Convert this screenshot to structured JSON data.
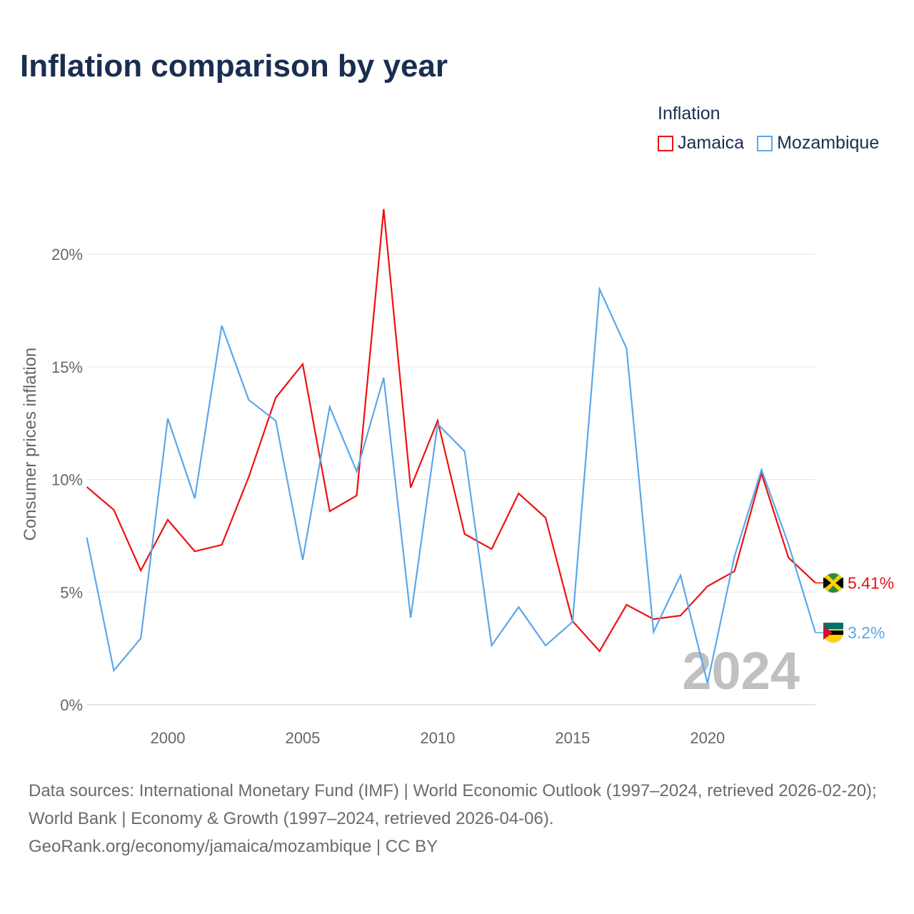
{
  "title": "Inflation comparison by year",
  "legend": {
    "title": "Inflation",
    "items": [
      {
        "label": "Jamaica",
        "color": "#ee1111"
      },
      {
        "label": "Mozambique",
        "color": "#5ba7ea"
      }
    ]
  },
  "source": {
    "line1": "Data sources: International Monetary Fund (IMF) | World Economic Outlook (1997–2024, retrieved 2026-02-20); World Bank | Economy & Growth (1997–2024, retrieved 2026-04-06).",
    "line2": "GeoRank.org/economy/jamaica/mozambique | CC BY"
  },
  "chart_data": {
    "type": "line",
    "title": "Inflation comparison by year",
    "xlabel": "",
    "ylabel": "Consumer prices inflation",
    "year_watermark": "2024",
    "xlim": [
      1997,
      2024
    ],
    "ylim": [
      0,
      22.5
    ],
    "x_ticks": [
      2000,
      2005,
      2010,
      2015,
      2020
    ],
    "y_ticks": [
      0,
      5,
      10,
      15,
      20
    ],
    "y_tick_labels": [
      "0%",
      "5%",
      "10%",
      "15%",
      "20%"
    ],
    "grid": true,
    "x": [
      1997,
      1998,
      1999,
      2000,
      2001,
      2002,
      2003,
      2004,
      2005,
      2006,
      2007,
      2008,
      2009,
      2010,
      2011,
      2012,
      2013,
      2014,
      2015,
      2016,
      2017,
      2018,
      2019,
      2020,
      2021,
      2022,
      2023,
      2024
    ],
    "series": [
      {
        "name": "Jamaica",
        "color": "#ee1111",
        "end_label": "5.41%",
        "values": [
          9.67,
          8.65,
          5.96,
          8.21,
          6.81,
          7.1,
          10.11,
          13.63,
          15.12,
          8.59,
          9.29,
          22.0,
          9.64,
          12.61,
          7.58,
          6.91,
          9.38,
          8.3,
          3.71,
          2.38,
          4.44,
          3.8,
          3.96,
          5.26,
          5.93,
          10.27,
          6.53,
          5.41
        ]
      },
      {
        "name": "Mozambique",
        "color": "#5ba7ea",
        "end_label": "3.2%",
        "values": [
          7.42,
          1.52,
          2.95,
          12.71,
          9.16,
          16.83,
          13.53,
          12.61,
          6.43,
          13.22,
          10.36,
          14.52,
          3.87,
          12.46,
          11.25,
          2.63,
          4.34,
          2.63,
          3.68,
          18.45,
          15.82,
          3.23,
          5.74,
          0.95,
          6.59,
          10.43,
          7.13,
          3.2
        ]
      }
    ]
  }
}
